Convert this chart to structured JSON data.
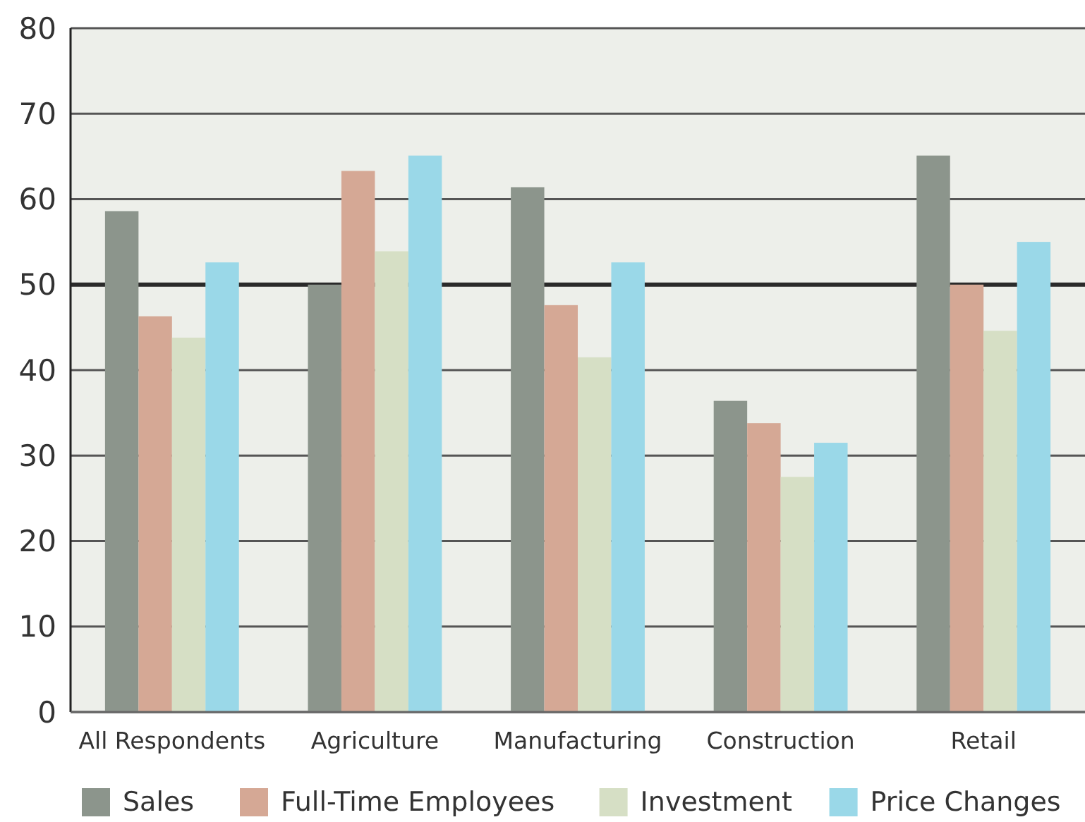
{
  "chart_data": {
    "type": "bar",
    "categories": [
      "All Respondents",
      "Agriculture",
      "Manufacturing",
      "Construction",
      "Retail"
    ],
    "series": [
      {
        "name": "Sales",
        "color": "#8c958c",
        "values": [
          58.6,
          50.0,
          61.4,
          36.4,
          65.1
        ]
      },
      {
        "name": "Full-Time Employees",
        "color": "#d5a895",
        "values": [
          46.3,
          63.3,
          47.6,
          33.8,
          50.0
        ]
      },
      {
        "name": "Investment",
        "color": "#d6dfc5",
        "values": [
          43.8,
          53.9,
          41.5,
          27.5,
          44.6
        ]
      },
      {
        "name": "Price Changes",
        "color": "#9ad8e8",
        "values": [
          52.6,
          65.1,
          52.6,
          31.5,
          55.0
        ]
      }
    ],
    "ylim": [
      0,
      80
    ],
    "yticks": [
      0,
      10,
      20,
      30,
      40,
      50,
      60,
      70,
      80
    ],
    "grid": "y",
    "legend": "bottom",
    "ref_lines": [
      {
        "axis": "y",
        "value": 50,
        "color": "#2a2a2a"
      }
    ]
  }
}
